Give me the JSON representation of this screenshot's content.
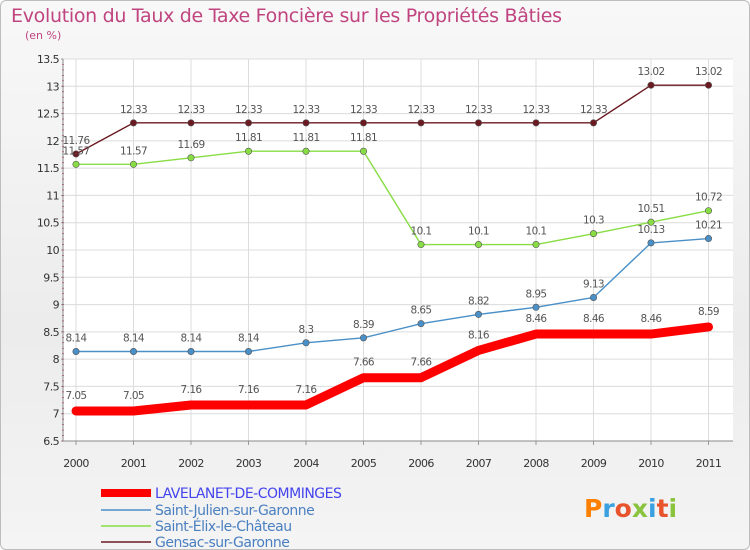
{
  "chart_data": {
    "type": "line",
    "title": "Evolution du Taux de Taxe Foncière sur les Propriétés Bâties",
    "ylabel": "(en %)",
    "xlabel": "",
    "x": [
      "2000",
      "2001",
      "2002",
      "2003",
      "2004",
      "2005",
      "2006",
      "2007",
      "2008",
      "2009",
      "2010",
      "2011"
    ],
    "ylim": [
      6.5,
      13.5
    ],
    "yticks": [
      "6.5",
      "7",
      "7.5",
      "8",
      "8.5",
      "9",
      "9.5",
      "10",
      "10.5",
      "11",
      "11.5",
      "12",
      "12.5",
      "13",
      "13.5"
    ],
    "grid": true,
    "legend_position": "bottom-left",
    "series": [
      {
        "name": "LAVELANET-DE-COMMINGES",
        "color": "#ff0000",
        "values": [
          7.05,
          7.05,
          7.16,
          7.16,
          7.16,
          7.66,
          7.66,
          8.16,
          8.46,
          8.46,
          8.46,
          8.59
        ]
      },
      {
        "name": "Saint-Julien-sur-Garonne",
        "color": "#4a90c8",
        "values": [
          8.14,
          8.14,
          8.14,
          8.14,
          8.3,
          8.39,
          8.65,
          8.82,
          8.95,
          9.13,
          10.13,
          10.21
        ]
      },
      {
        "name": "Saint-Élix-le-Château",
        "color": "#88dd44",
        "values": [
          11.57,
          11.57,
          11.69,
          11.81,
          11.81,
          11.81,
          10.1,
          10.1,
          10.1,
          10.3,
          10.51,
          10.72
        ]
      },
      {
        "name": "Gensac-sur-Garonne",
        "color": "#6b1a22",
        "values": [
          11.76,
          12.33,
          12.33,
          12.33,
          12.33,
          12.33,
          12.33,
          12.33,
          12.33,
          12.33,
          13.02,
          13.02
        ]
      }
    ]
  },
  "logo": {
    "text": "Proxiti"
  }
}
